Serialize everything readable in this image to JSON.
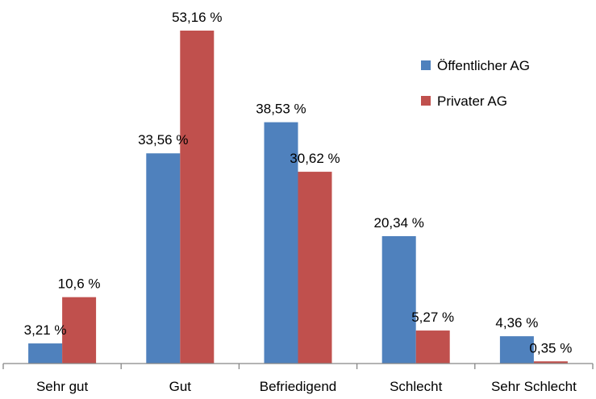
{
  "chart_data": {
    "type": "bar",
    "title": "",
    "xlabel": "",
    "ylabel": "",
    "ylim": [
      0,
      55
    ],
    "grid": false,
    "legend_position": "top-right",
    "categories": [
      "Sehr gut",
      "Gut",
      "Befriedigend",
      "Schlecht",
      "Sehr Schlecht"
    ],
    "series": [
      {
        "name": "Öffentlicher AG",
        "color": "#4f81bd",
        "values": [
          3.21,
          33.56,
          38.53,
          20.34,
          4.36
        ],
        "labels": [
          "3,21 %",
          "33,56 %",
          "38,53 %",
          "20,34 %",
          "4,36 %"
        ]
      },
      {
        "name": "Privater AG",
        "color": "#c0504d",
        "values": [
          10.6,
          53.16,
          30.62,
          5.27,
          0.35
        ],
        "labels": [
          "10,6 %",
          "53,16 %",
          "30,62 %",
          "5,27 %",
          "0,35 %"
        ]
      }
    ]
  }
}
